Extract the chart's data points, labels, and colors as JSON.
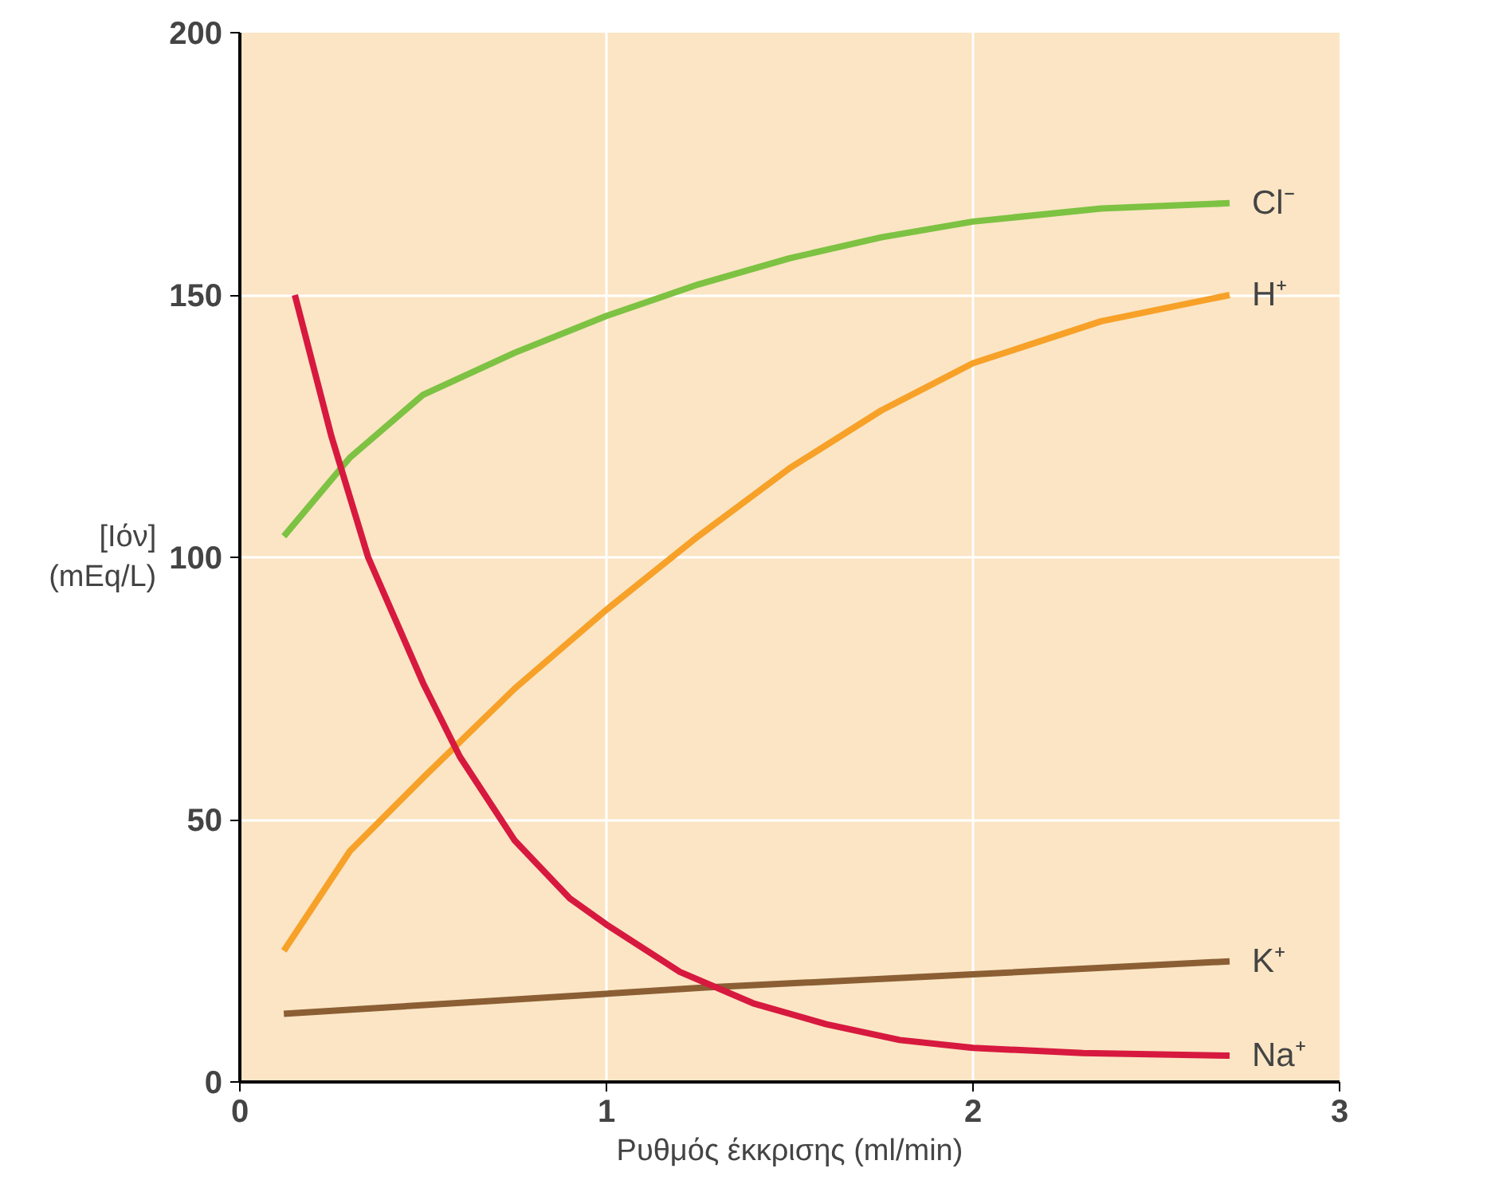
{
  "chart_data": {
    "type": "line",
    "xlabel": "Ρυθμός έκκρισης (ml/min)",
    "ylabel": "[Ιόν]\n(mEq/L)",
    "xlim": [
      0,
      3
    ],
    "ylim": [
      0,
      200
    ],
    "xticks": [
      0,
      1,
      2,
      3
    ],
    "yticks": [
      0,
      50,
      100,
      150,
      200
    ],
    "grid": true,
    "marker": "none",
    "line_style": "solid",
    "series": [
      {
        "name": "Cl⁻",
        "color": "#7dc242",
        "x": [
          0.12,
          0.3,
          0.5,
          0.75,
          1.0,
          1.25,
          1.5,
          1.75,
          2.0,
          2.35,
          2.7
        ],
        "values": [
          104,
          119,
          131,
          139,
          146,
          152,
          157,
          161,
          164,
          166.5,
          167.5
        ]
      },
      {
        "name": "H⁺",
        "color": "#f7a128",
        "x": [
          0.12,
          0.3,
          0.5,
          0.75,
          1.0,
          1.25,
          1.5,
          1.75,
          2.0,
          2.35,
          2.7
        ],
        "values": [
          25,
          44,
          58,
          75,
          90,
          104,
          117,
          128,
          137,
          145,
          150
        ]
      },
      {
        "name": "K⁺",
        "color": "#8b5e34",
        "x": [
          0.12,
          0.7,
          1.27,
          2.0,
          2.7
        ],
        "values": [
          13,
          15.5,
          18,
          20.5,
          23
        ]
      },
      {
        "name": "Na⁺",
        "color": "#d7193f",
        "x": [
          0.15,
          0.25,
          0.35,
          0.5,
          0.6,
          0.75,
          0.9,
          1.0,
          1.2,
          1.4,
          1.6,
          1.8,
          2.0,
          2.3,
          2.7
        ],
        "values": [
          150,
          123,
          100,
          76,
          62,
          46,
          35,
          30,
          21,
          15,
          11,
          8,
          6.5,
          5.5,
          5
        ]
      }
    ]
  }
}
